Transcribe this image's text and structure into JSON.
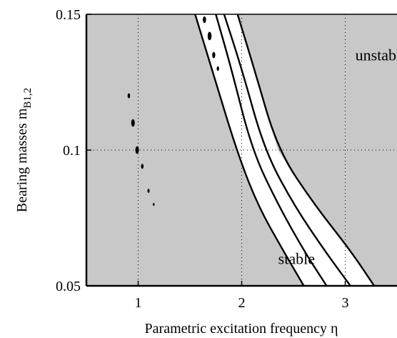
{
  "chart_data": {
    "type": "contour",
    "title": "",
    "xlabel": "Parametric excitation frequency η",
    "ylabel": {
      "main": "Bearing masses m",
      "subscript": "B1,2"
    },
    "xlim": [
      0.5,
      3.5
    ],
    "ylim": [
      0.05,
      0.15
    ],
    "xticks": [
      {
        "value": 1,
        "label": "1"
      },
      {
        "value": 2,
        "label": "2"
      },
      {
        "value": 3,
        "label": "3"
      }
    ],
    "yticks": [
      {
        "value": 0.05,
        "label": "0.05"
      },
      {
        "value": 0.1,
        "label": "0.1"
      },
      {
        "value": 0.15,
        "label": "0.15"
      }
    ],
    "grid": true,
    "regions": {
      "unstable": {
        "label": "unstable",
        "at": [
          3.35,
          0.133
        ],
        "color": "#c8c8c8"
      },
      "stable": {
        "label": "stable",
        "at": [
          2.53,
          0.058
        ],
        "color": "#ffffff"
      }
    },
    "series": [
      {
        "points": [
          [
            1.55,
            0.15
          ],
          [
            1.75,
            0.125
          ],
          [
            1.95,
            0.1
          ],
          [
            2.15,
            0.08
          ],
          [
            2.4,
            0.063
          ],
          [
            2.6,
            0.05
          ]
        ]
      },
      {
        "points": [
          [
            1.75,
            0.15
          ],
          [
            1.9,
            0.13
          ],
          [
            2.1,
            0.1
          ],
          [
            2.35,
            0.08
          ],
          [
            2.6,
            0.063
          ],
          [
            2.82,
            0.05
          ]
        ]
      },
      {
        "points": [
          [
            1.83,
            0.15
          ],
          [
            2.0,
            0.13
          ],
          [
            2.22,
            0.1
          ],
          [
            2.5,
            0.08
          ],
          [
            2.8,
            0.063
          ],
          [
            3.05,
            0.05
          ]
        ]
      },
      {
        "points": [
          [
            1.96,
            0.15
          ],
          [
            2.12,
            0.13
          ],
          [
            2.35,
            0.1
          ],
          [
            2.7,
            0.08
          ],
          [
            3.05,
            0.063
          ],
          [
            3.28,
            0.05
          ]
        ]
      }
    ],
    "islands": [
      {
        "x": 0.91,
        "y": 0.12,
        "size": 1.0
      },
      {
        "x": 0.95,
        "y": 0.11,
        "size": 1.6
      },
      {
        "x": 0.99,
        "y": 0.1,
        "size": 1.6
      },
      {
        "x": 1.04,
        "y": 0.094,
        "size": 1.0
      },
      {
        "x": 1.1,
        "y": 0.085,
        "size": 0.8
      },
      {
        "x": 1.15,
        "y": 0.08,
        "size": 0.5
      },
      {
        "x": 1.64,
        "y": 0.148,
        "size": 1.4
      },
      {
        "x": 1.69,
        "y": 0.142,
        "size": 1.8
      },
      {
        "x": 1.73,
        "y": 0.135,
        "size": 1.3
      },
      {
        "x": 1.77,
        "y": 0.13,
        "size": 0.9
      }
    ]
  }
}
